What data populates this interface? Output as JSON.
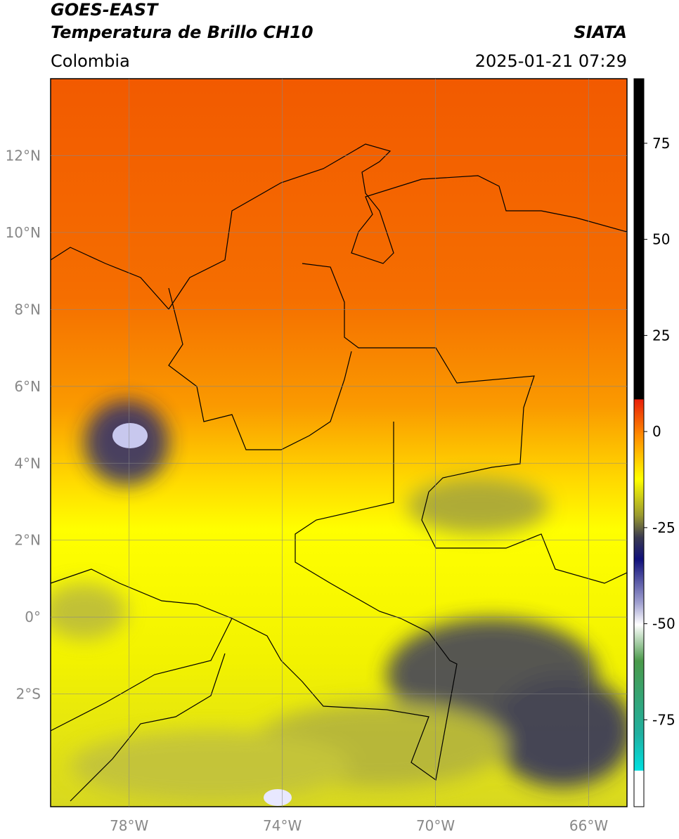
{
  "header": {
    "satellite": "GOES-EAST",
    "product": "Temperatura de Brillo CH10",
    "agency": "SIATA",
    "region": "Colombia",
    "datetime": "2025-01-21 07:29"
  },
  "map": {
    "xlim": [
      -80.05,
      -65.0
    ],
    "ylim": [
      -4.93,
      14.0
    ],
    "xticks": [
      {
        "value": -78,
        "label": "78°W"
      },
      {
        "value": -74,
        "label": "74°W"
      },
      {
        "value": -70,
        "label": "70°W"
      },
      {
        "value": -66,
        "label": "66°W"
      }
    ],
    "yticks": [
      {
        "value": 12,
        "label": "12°N"
      },
      {
        "value": 10,
        "label": "10°N"
      },
      {
        "value": 8,
        "label": "8°N"
      },
      {
        "value": 6,
        "label": "6°N"
      },
      {
        "value": 4,
        "label": "4°N"
      },
      {
        "value": 2,
        "label": "2°N"
      },
      {
        "value": 0,
        "label": "0°"
      },
      {
        "value": -2,
        "label": "2°S"
      }
    ],
    "grid": true
  },
  "colorbar": {
    "lim": [
      -97.6,
      91.8
    ],
    "ticks": [
      75,
      50,
      25,
      0,
      -25,
      -50,
      -75
    ]
  }
}
